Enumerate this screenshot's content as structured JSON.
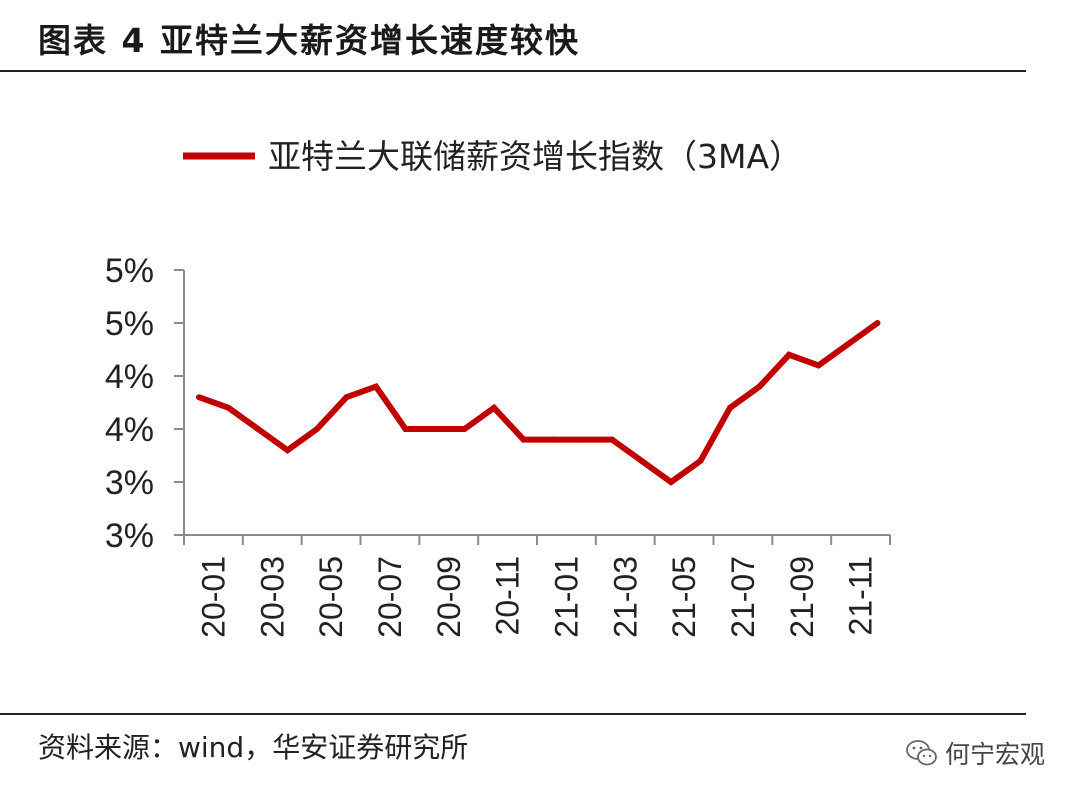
{
  "figure": {
    "title": "图表 4  亚特兰大薪资增长速度较快",
    "source": "资料来源：wind，华安证券研究所",
    "watermark": "何宁宏观"
  },
  "colors": {
    "series": "#c00000",
    "axis": "#8c8c8c",
    "text": "#222222"
  },
  "icons": {
    "watermark": "wechat-icon"
  },
  "chart_data": {
    "type": "line",
    "title": "",
    "legend_position": "top",
    "grid": false,
    "xlabel": "",
    "ylabel": "",
    "ylim": [
      2.5,
      5.0
    ],
    "y_ticks": [
      2.5,
      3.0,
      3.5,
      4.0,
      4.5,
      5.0
    ],
    "y_tick_labels": [
      "3%",
      "3%",
      "4%",
      "4%",
      "5%",
      "5%"
    ],
    "x_tick_labels": [
      "20-01",
      "20-03",
      "20-05",
      "20-07",
      "20-09",
      "20-11",
      "21-01",
      "21-03",
      "21-05",
      "21-07",
      "21-09",
      "21-11"
    ],
    "categories": [
      "20-01",
      "20-02",
      "20-03",
      "20-04",
      "20-05",
      "20-06",
      "20-07",
      "20-08",
      "20-09",
      "20-10",
      "20-11",
      "20-12",
      "21-01",
      "21-02",
      "21-03",
      "21-04",
      "21-05",
      "21-06",
      "21-07",
      "21-08",
      "21-09",
      "21-10",
      "21-11",
      "21-12"
    ],
    "series": [
      {
        "name": "亚特兰大联储薪资增长指数（3MA）",
        "values": [
          3.8,
          3.7,
          3.5,
          3.3,
          3.5,
          3.8,
          3.9,
          3.5,
          3.5,
          3.5,
          3.7,
          3.4,
          3.4,
          3.4,
          3.4,
          3.2,
          3.0,
          3.2,
          3.7,
          3.9,
          4.2,
          4.1,
          4.3,
          4.5
        ]
      }
    ]
  }
}
